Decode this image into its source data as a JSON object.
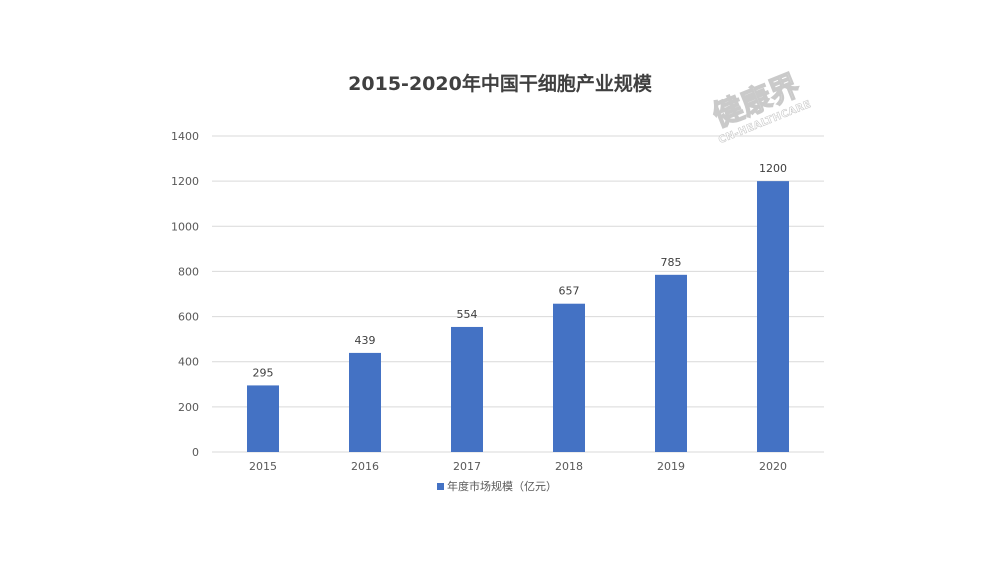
{
  "chart_data": {
    "type": "bar",
    "title": "2015-2020年中国干细胞产业规模",
    "categories": [
      "2015",
      "2016",
      "2017",
      "2018",
      "2019",
      "2020"
    ],
    "series": [
      {
        "name": "年度市场规模（亿元）",
        "values": [
          295,
          439,
          554,
          657,
          785,
          1200
        ],
        "color": "#4472c4"
      }
    ],
    "ylim": [
      0,
      1400
    ],
    "yticks": [
      0,
      200,
      400,
      600,
      800,
      1000,
      1200,
      1400
    ],
    "grid": true,
    "legend_position": "bottom",
    "data_labels": true
  },
  "watermark": {
    "main": "健康界",
    "sub": "CN-HEALTHCARE"
  }
}
